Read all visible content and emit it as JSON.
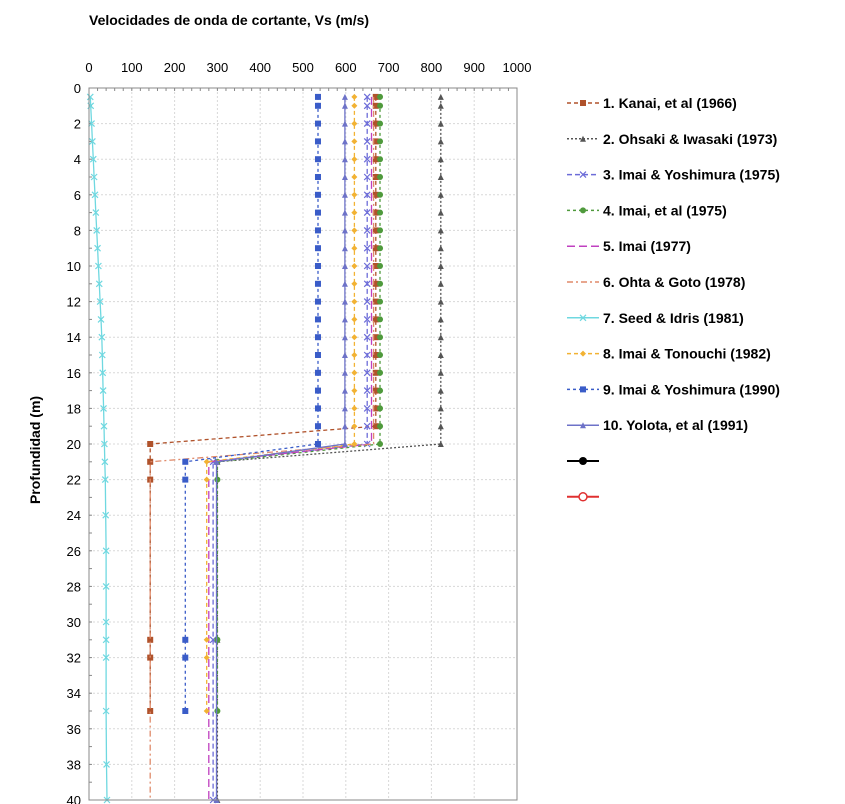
{
  "chart_data": {
    "type": "line",
    "title": "Velocidades de onda de cortante, Vs (m/s)",
    "xlabel": "",
    "ylabel": "Profundidad (m)",
    "xlim": [
      0,
      1000
    ],
    "ylim": [
      0,
      40
    ],
    "y_inverted": true,
    "x_axis_position": "top",
    "x_ticks": [
      0,
      100,
      200,
      300,
      400,
      500,
      600,
      700,
      800,
      900,
      1000
    ],
    "y_ticks": [
      0,
      2,
      4,
      6,
      8,
      10,
      12,
      14,
      16,
      18,
      20,
      22,
      24,
      26,
      28,
      30,
      32,
      34,
      36,
      38,
      40
    ],
    "grid": true,
    "legend_position": "right",
    "series": [
      {
        "name": "1. Kanai, et al (1966)",
        "color": "#b0522b",
        "dash": "4,3",
        "marker": "square",
        "x": [
          670,
          670,
          670,
          670,
          670,
          670,
          670,
          670,
          670,
          670,
          670,
          670,
          670,
          670,
          670,
          670,
          670,
          670,
          670,
          670,
          143,
          143,
          143,
          143,
          143,
          143
        ],
        "y": [
          0.5,
          1,
          2,
          3,
          4,
          5,
          6,
          7,
          8,
          9,
          10,
          11,
          12,
          13,
          14,
          15,
          16,
          17,
          18,
          19,
          20,
          21,
          22,
          31,
          32,
          35
        ]
      },
      {
        "name": "2. Ohsaki & Iwasaki (1973)",
        "color": "#555555",
        "dash": "2,2",
        "marker": "triangle",
        "x": [
          822,
          822,
          822,
          822,
          822,
          822,
          822,
          822,
          822,
          822,
          822,
          822,
          822,
          822,
          822,
          822,
          822,
          822,
          822,
          822,
          822,
          300,
          300,
          300
        ],
        "y": [
          0.5,
          1,
          2,
          3,
          4,
          5,
          6,
          7,
          8,
          9,
          10,
          11,
          12,
          13,
          14,
          15,
          16,
          17,
          18,
          19,
          20,
          21,
          31,
          40
        ]
      },
      {
        "name": "3. Imai & Yoshimura (1975)",
        "color": "#6c6cd8",
        "dash": "5,3",
        "marker": "x",
        "x": [
          650,
          650,
          650,
          650,
          650,
          650,
          650,
          650,
          650,
          650,
          650,
          650,
          650,
          650,
          650,
          650,
          650,
          650,
          650,
          650,
          650,
          290,
          290,
          290
        ],
        "y": [
          0.5,
          1,
          2,
          3,
          4,
          5,
          6,
          7,
          8,
          9,
          10,
          11,
          12,
          13,
          14,
          15,
          16,
          17,
          18,
          19,
          20,
          21,
          31,
          40
        ]
      },
      {
        "name": "4. Imai, et al (1975)",
        "color": "#4f9a3c",
        "dash": "3,3",
        "marker": "circle",
        "x": [
          680,
          680,
          680,
          680,
          680,
          680,
          680,
          680,
          680,
          680,
          680,
          680,
          680,
          680,
          680,
          680,
          680,
          680,
          680,
          680,
          680,
          300,
          300,
          300,
          300
        ],
        "y": [
          0.5,
          1,
          2,
          3,
          4,
          5,
          6,
          7,
          8,
          9,
          10,
          11,
          12,
          13,
          14,
          15,
          16,
          17,
          18,
          19,
          20,
          21,
          22,
          31,
          35
        ]
      },
      {
        "name": "5. Imai (1977)",
        "color": "#c040c0",
        "dash": "8,4",
        "marker": "none",
        "x": [
          660,
          660,
          660,
          660,
          660,
          660,
          660,
          660,
          660,
          660,
          660,
          660,
          660,
          660,
          660,
          660,
          660,
          660,
          660,
          660,
          660,
          280,
          280
        ],
        "y": [
          0.5,
          1,
          2,
          3,
          4,
          5,
          6,
          7,
          8,
          9,
          10,
          11,
          12,
          13,
          14,
          15,
          16,
          17,
          18,
          19,
          20,
          21,
          40
        ]
      },
      {
        "name": "6. Ohta & Goto (1978)",
        "color": "#e08a6a",
        "dash": "6,3,2,3",
        "marker": "none",
        "x": [
          665,
          665,
          665,
          143,
          143
        ],
        "y": [
          0.5,
          19,
          20,
          21,
          40
        ]
      },
      {
        "name": "7. Seed & Idris (1981)",
        "color": "#6fd8e0",
        "dash": "",
        "marker": "x",
        "x": [
          3,
          4,
          6,
          8,
          10,
          12,
          14,
          16,
          18,
          20,
          22,
          24,
          26,
          28,
          30,
          31,
          32,
          33,
          34,
          35,
          36,
          37,
          38,
          39,
          40,
          40,
          40,
          40,
          40,
          40,
          41,
          42
        ],
        "y": [
          0.5,
          1,
          2,
          3,
          4,
          5,
          6,
          7,
          8,
          9,
          10,
          11,
          12,
          13,
          14,
          15,
          16,
          17,
          18,
          19,
          20,
          21,
          22,
          24,
          26,
          28,
          30,
          31,
          32,
          35,
          38,
          40
        ]
      },
      {
        "name": "8. Imai & Tonouchi (1982)",
        "color": "#f2b233",
        "dash": "4,3",
        "marker": "diamond",
        "x": [
          620,
          620,
          620,
          620,
          620,
          620,
          620,
          620,
          620,
          620,
          620,
          620,
          620,
          620,
          620,
          620,
          620,
          620,
          620,
          620,
          620,
          275,
          275,
          275,
          275,
          275
        ],
        "y": [
          0.5,
          1,
          2,
          3,
          4,
          5,
          6,
          7,
          8,
          9,
          10,
          11,
          12,
          13,
          14,
          15,
          16,
          17,
          18,
          19,
          20,
          21,
          22,
          31,
          32,
          35
        ]
      },
      {
        "name": "9. Imai & Yoshimura (1990)",
        "color": "#3a5cc8",
        "dash": "3,3",
        "marker": "square",
        "x": [
          535,
          535,
          535,
          535,
          535,
          535,
          535,
          535,
          535,
          535,
          535,
          535,
          535,
          535,
          535,
          535,
          535,
          535,
          535,
          535,
          535,
          225,
          225,
          225,
          225,
          225
        ],
        "y": [
          0.5,
          1,
          2,
          3,
          4,
          5,
          6,
          7,
          8,
          9,
          10,
          11,
          12,
          13,
          14,
          15,
          16,
          17,
          18,
          19,
          20,
          21,
          22,
          31,
          32,
          35
        ]
      },
      {
        "name": "10. Yolota, et al (1991)",
        "color": "#6d72c8",
        "dash": "",
        "marker": "triangle",
        "x": [
          598,
          598,
          598,
          598,
          598,
          598,
          598,
          598,
          598,
          598,
          598,
          598,
          598,
          598,
          598,
          598,
          598,
          598,
          598,
          598,
          598,
          298,
          298
        ],
        "y": [
          0.5,
          1,
          2,
          3,
          4,
          5,
          6,
          7,
          8,
          9,
          10,
          11,
          12,
          13,
          14,
          15,
          16,
          17,
          18,
          19,
          20,
          21,
          40
        ]
      }
    ],
    "extra_legend": [
      {
        "name": "",
        "color": "#000000",
        "marker": "filled-circle"
      },
      {
        "name": "",
        "color": "#e03030",
        "marker": "open-circle"
      }
    ]
  }
}
